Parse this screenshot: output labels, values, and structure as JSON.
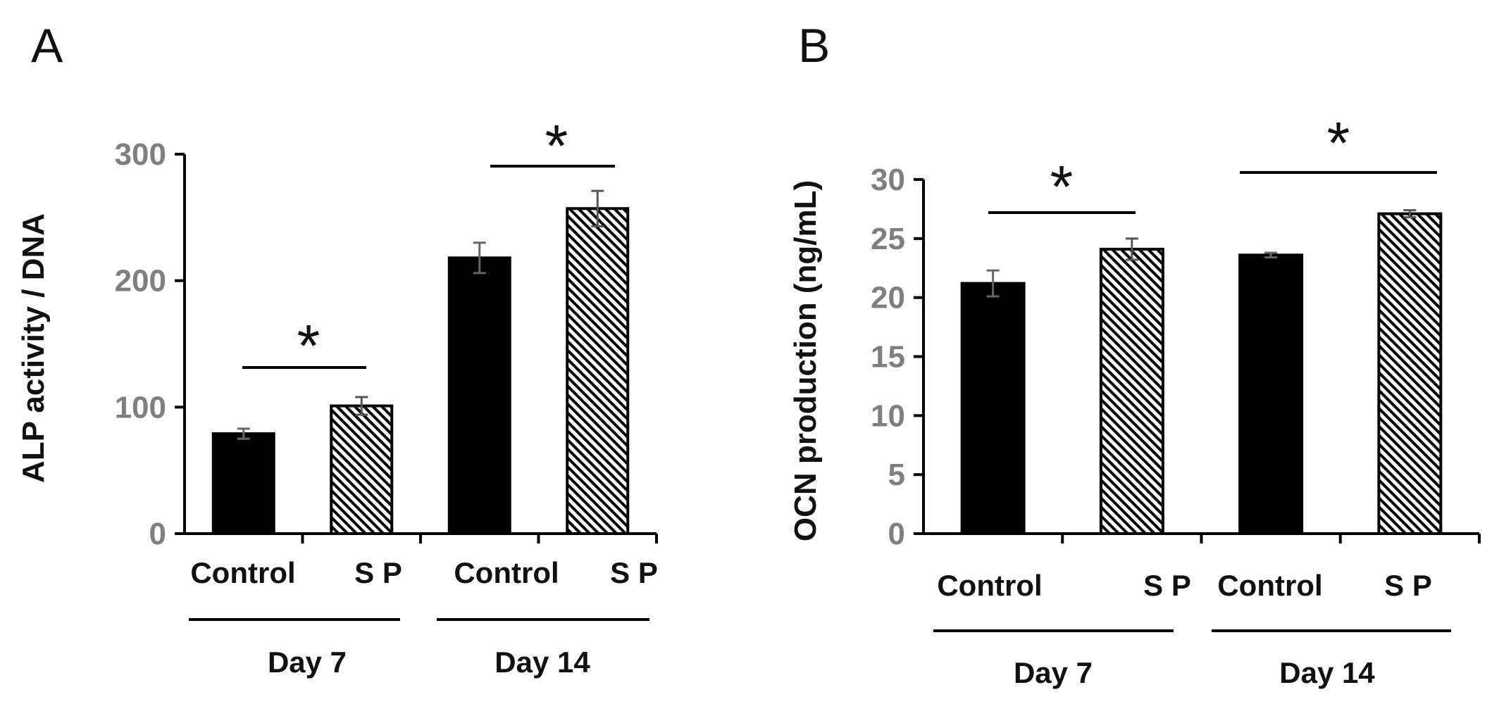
{
  "chart_data": [
    {
      "panel": "A",
      "type": "bar",
      "ylabel": "ALP activity / DNA",
      "ylim": [
        0,
        300
      ],
      "yticks": [
        0,
        100,
        200,
        300
      ],
      "categories": [
        "Control",
        "S P",
        "Control",
        "S P"
      ],
      "groups": [
        {
          "label": "Day 7",
          "categories": [
            "Control",
            "S P"
          ]
        },
        {
          "label": "Day 14",
          "categories": [
            "Control",
            "S P"
          ]
        }
      ],
      "values": [
        79,
        101,
        218,
        257
      ],
      "errors": [
        4,
        7,
        12,
        14
      ],
      "fills": [
        "solid",
        "hatched",
        "solid",
        "hatched"
      ],
      "significance": [
        {
          "label": "*",
          "between": [
            0,
            1
          ]
        },
        {
          "label": "*",
          "between": [
            2,
            3
          ]
        }
      ]
    },
    {
      "panel": "B",
      "type": "bar",
      "ylabel": "OCN production (ng/mL)",
      "ylim": [
        0,
        30
      ],
      "yticks": [
        0,
        5,
        10,
        15,
        20,
        25,
        30
      ],
      "categories": [
        "Control",
        "S P",
        "Control",
        "S P"
      ],
      "groups": [
        {
          "label": "Day 7",
          "categories": [
            "Control",
            "S P"
          ]
        },
        {
          "label": "Day 14",
          "categories": [
            "Control",
            "S P"
          ]
        }
      ],
      "values": [
        21.2,
        24.1,
        23.6,
        27.1
      ],
      "errors": [
        1.1,
        0.9,
        0.2,
        0.3
      ],
      "fills": [
        "solid",
        "hatched",
        "solid",
        "hatched"
      ],
      "significance": [
        {
          "label": "*",
          "between": [
            0,
            1
          ]
        },
        {
          "label": "*",
          "between": [
            2,
            3
          ]
        }
      ]
    }
  ],
  "colors": {
    "bar_solid": "#000000",
    "hatch_line": "#000000",
    "axis": "#000000",
    "tick_text": "#7f7f7f",
    "text": "#111111"
  }
}
